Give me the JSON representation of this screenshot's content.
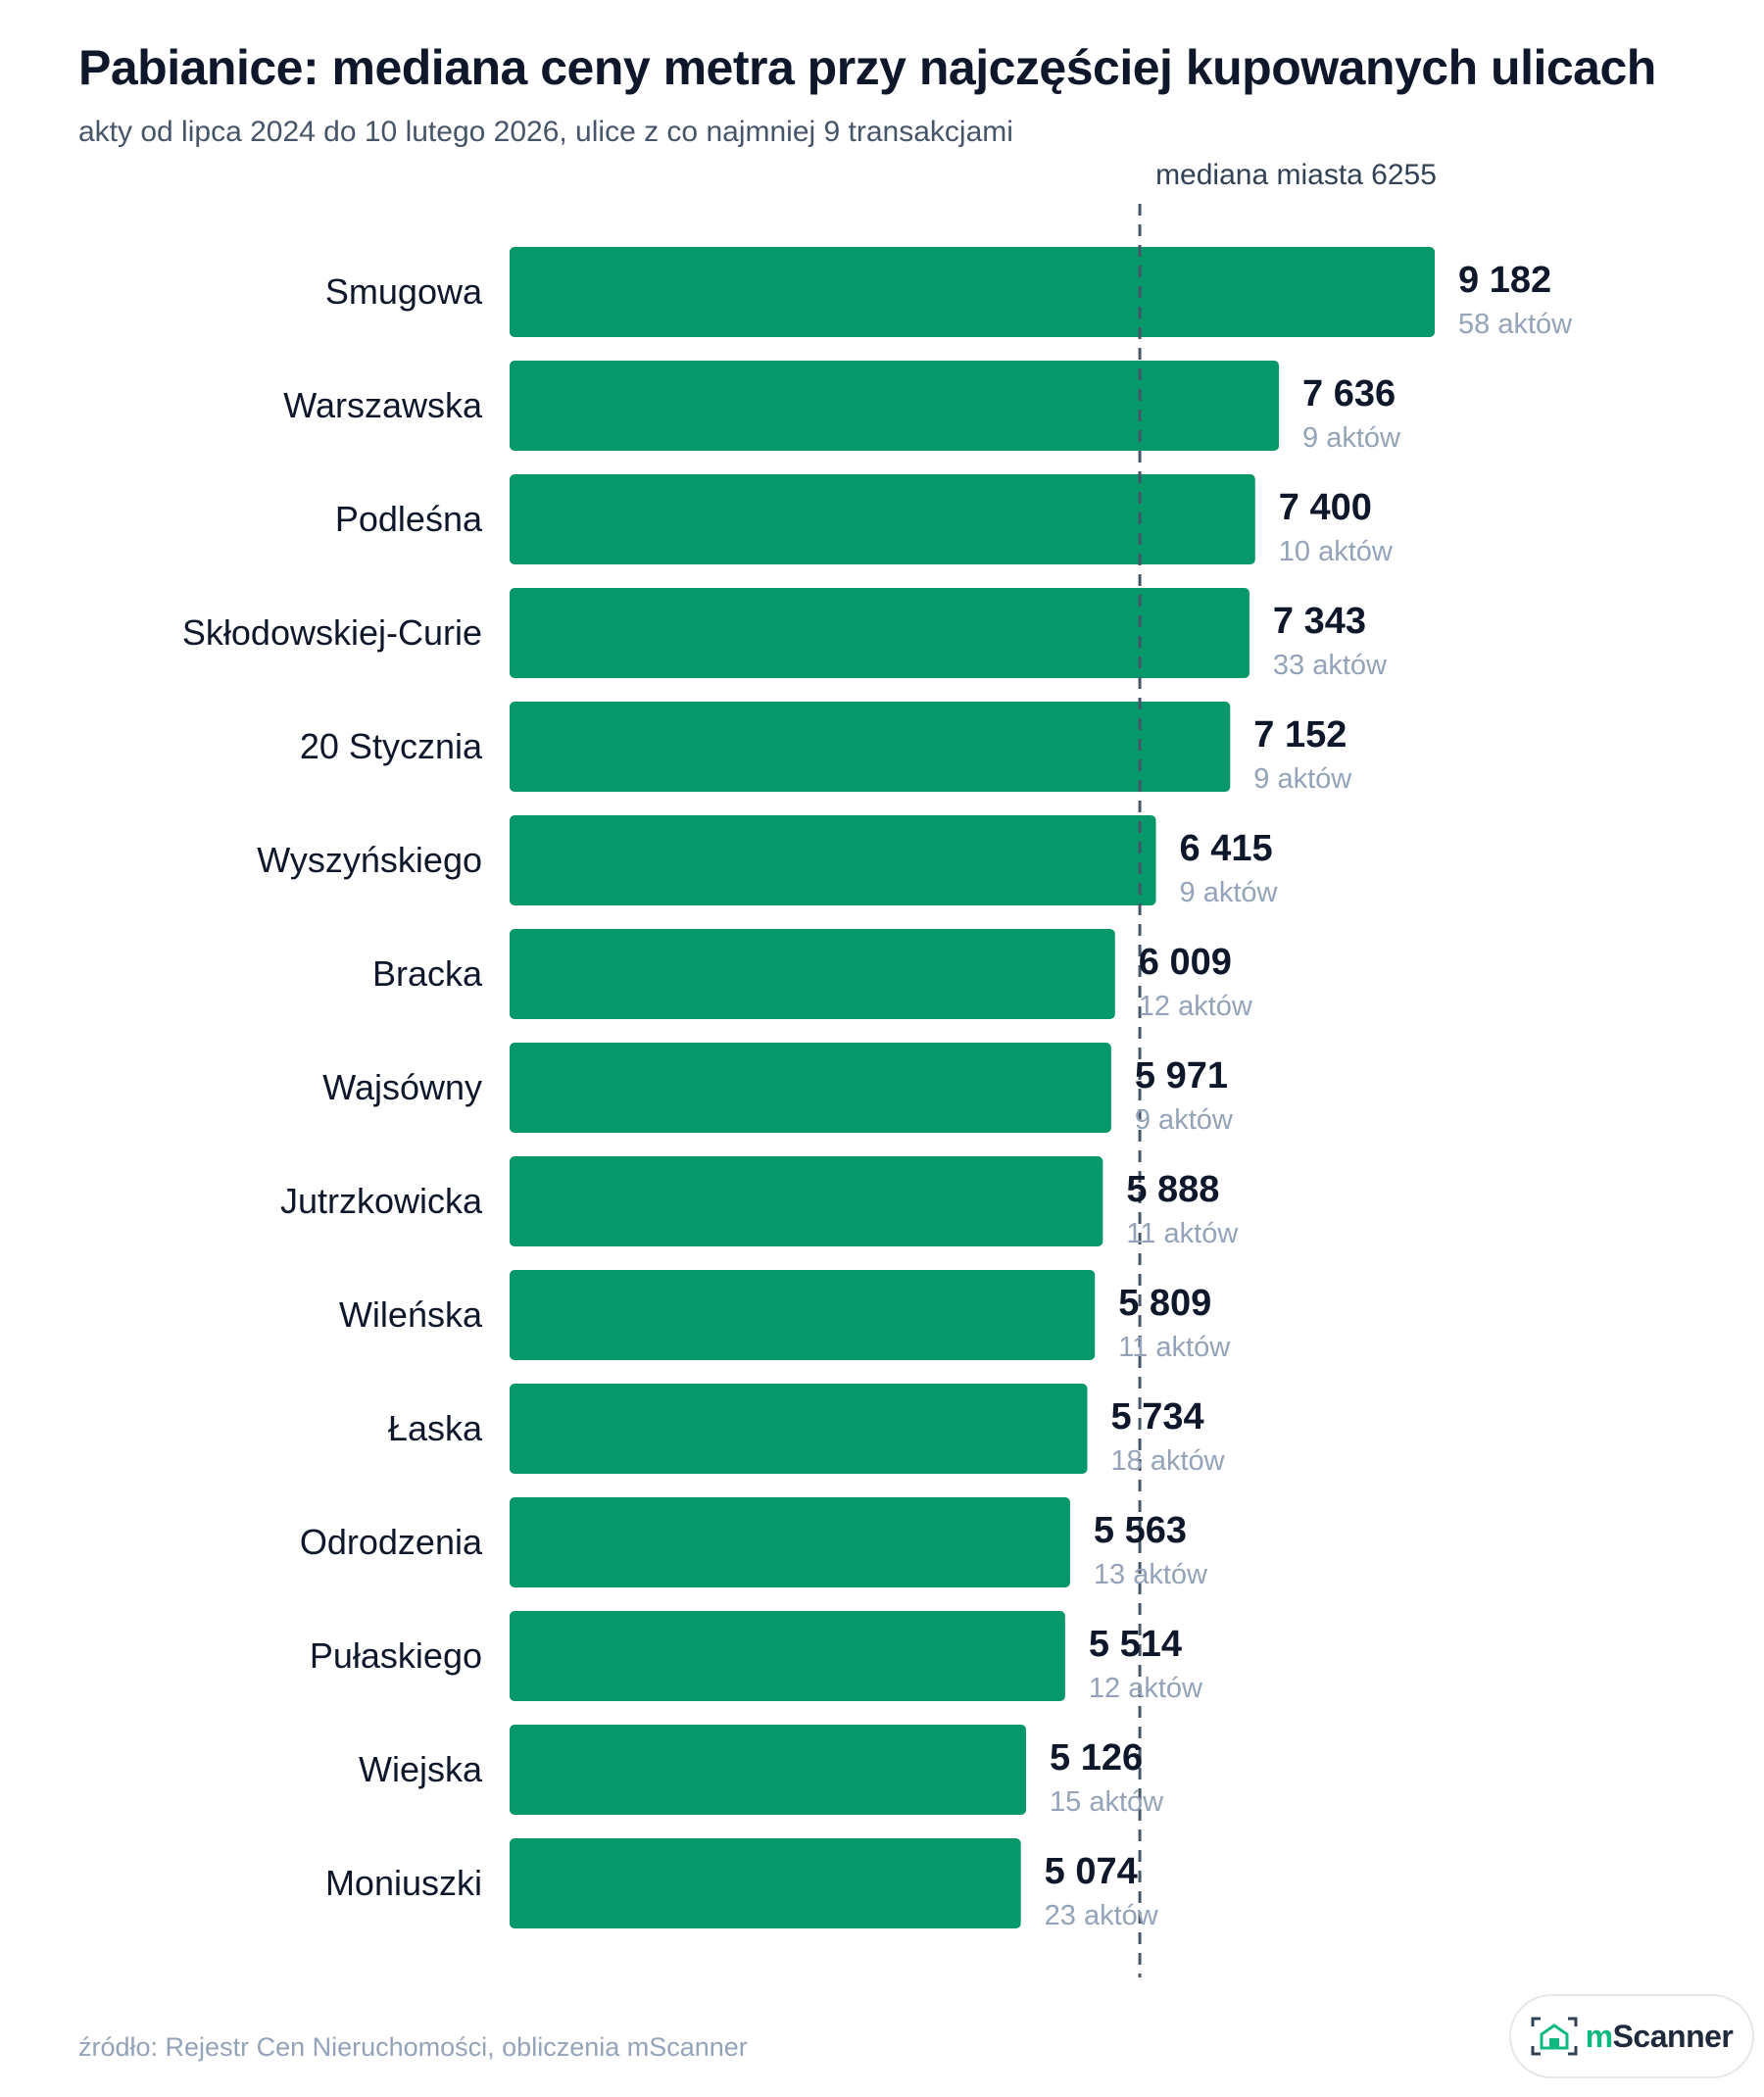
{
  "header": {
    "title": "Pabianice: mediana ceny metra przy najczęściej kupowanych ulicach",
    "subtitle": "akty od lipca 2024 do 10 lutego 2026, ulice z co najmniej 9 transakcjami"
  },
  "footer": {
    "source": "źródło: Rejestr Cen Nieruchomości, obliczenia mScanner",
    "logo_prefix": "m",
    "logo_text": "Scanner"
  },
  "colors": {
    "bar": "#06976a",
    "reference_line": "#475569"
  },
  "chart_data": {
    "type": "bar",
    "orientation": "horizontal",
    "categories": [
      "Smugowa",
      "Warszawska",
      "Podleśna",
      "Skłodowskiej-Curie",
      "20 Stycznia",
      "Wyszyńskiego",
      "Bracka",
      "Wajsówny",
      "Jutrzkowicka",
      "Wileńska",
      "Łaska",
      "Odrodzenia",
      "Pułaskiego",
      "Wiejska",
      "Moniuszki"
    ],
    "values": [
      9182,
      7636,
      7400,
      7343,
      7152,
      6415,
      6009,
      5971,
      5888,
      5809,
      5734,
      5563,
      5514,
      5126,
      5074
    ],
    "value_labels": [
      "9 182",
      "7 636",
      "7 400",
      "7 343",
      "7 152",
      "6 415",
      "6 009",
      "5 971",
      "5 888",
      "5 809",
      "5 734",
      "5 563",
      "5 514",
      "5 126",
      "5 074"
    ],
    "count_labels": [
      "58 aktów",
      "9 aktów",
      "10 aktów",
      "33 aktów",
      "9 aktów",
      "9 aktów",
      "12 aktów",
      "9 aktów",
      "11 aktów",
      "11 aktów",
      "18 aktów",
      "13 aktów",
      "12 aktów",
      "15 aktów",
      "23 aktów"
    ],
    "counts": [
      58,
      9,
      10,
      33,
      9,
      9,
      12,
      9,
      11,
      11,
      18,
      13,
      12,
      15,
      23
    ],
    "reference": {
      "value": 6255,
      "label": "mediana miasta 6255",
      "style": "dashed"
    },
    "xlim": [
      0,
      9182
    ],
    "grid": false,
    "legend": "none"
  }
}
